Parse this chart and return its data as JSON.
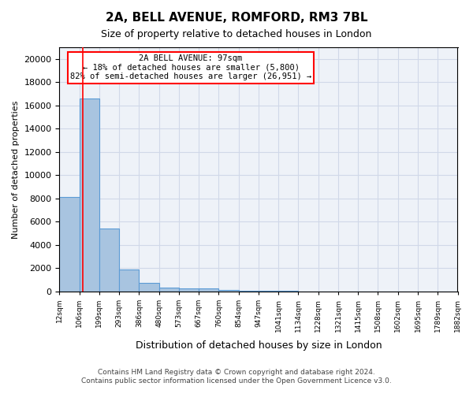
{
  "title": "2A, BELL AVENUE, ROMFORD, RM3 7BL",
  "subtitle": "Size of property relative to detached houses in London",
  "xlabel": "Distribution of detached houses by size in London",
  "ylabel": "Number of detached properties",
  "bar_values": [
    8100,
    16600,
    5400,
    1850,
    700,
    320,
    220,
    220,
    150,
    80,
    40,
    20,
    10,
    5,
    3,
    2,
    1,
    1,
    0,
    0
  ],
  "bar_labels": [
    "12sqm",
    "106sqm",
    "199sqm",
    "293sqm",
    "386sqm",
    "480sqm",
    "573sqm",
    "667sqm",
    "760sqm",
    "854sqm",
    "947sqm",
    "1041sqm",
    "1134sqm",
    "1228sqm",
    "1321sqm",
    "1415sqm",
    "1508sqm",
    "1602sqm",
    "1695sqm",
    "1789sqm"
  ],
  "bar_color": "#a8c4e0",
  "bar_edge_color": "#5b9bd5",
  "grid_color": "#d0d8e8",
  "background_color": "#eef2f8",
  "annotation_text": "2A BELL AVENUE: 97sqm\n← 18% of detached houses are smaller (5,800)\n82% of semi-detached houses are larger (26,951) →",
  "red_line_x": 1.18,
  "ylim": [
    0,
    21000
  ],
  "yticks": [
    0,
    2000,
    4000,
    6000,
    8000,
    10000,
    12000,
    14000,
    16000,
    18000,
    20000
  ],
  "footer_line1": "Contains HM Land Registry data © Crown copyright and database right 2024.",
  "footer_line2": "Contains public sector information licensed under the Open Government Licence v3.0."
}
